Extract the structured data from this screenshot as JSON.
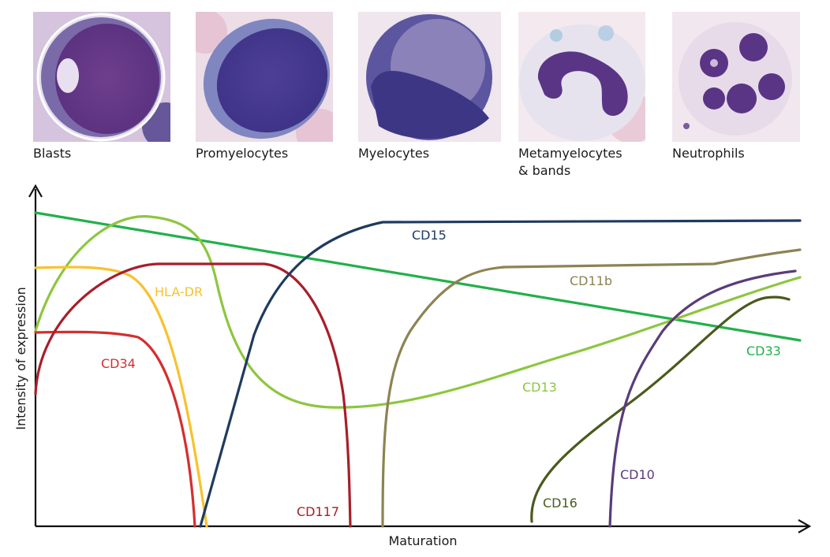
{
  "stages": [
    {
      "id": "blasts",
      "label": "Blasts",
      "label_line2": ""
    },
    {
      "id": "promyelocytes",
      "label": "Promyelocytes",
      "label_line2": ""
    },
    {
      "id": "myelocytes",
      "label": "Myelocytes",
      "label_line2": ""
    },
    {
      "id": "metamyelocytes",
      "label": "Metamyelocytes",
      "label_line2": "& bands"
    },
    {
      "id": "neutrophils",
      "label": "Neutrophils",
      "label_line2": ""
    }
  ],
  "axes": {
    "x_label": "Maturation",
    "y_label": "Intensity of expression"
  },
  "markers": [
    {
      "id": "cd33",
      "label": "CD33",
      "color": "#22b04b"
    },
    {
      "id": "cd13",
      "label": "CD13",
      "color": "#8dc63f"
    },
    {
      "id": "hladr",
      "label": "HLA-DR",
      "color": "#f7c22e"
    },
    {
      "id": "cd34",
      "label": "CD34",
      "color": "#d32f2f"
    },
    {
      "id": "cd117",
      "label": "CD117",
      "color": "#a81e2a"
    },
    {
      "id": "cd15",
      "label": "CD15",
      "color": "#1e3a5f"
    },
    {
      "id": "cd11b",
      "label": "CD11b",
      "color": "#8c8452"
    },
    {
      "id": "cd16",
      "label": "CD16",
      "color": "#4a5a1e"
    },
    {
      "id": "cd10",
      "label": "CD10",
      "color": "#5b3b7a"
    }
  ],
  "colors": {
    "cell_background_purple": "#d9c6e0",
    "nucleus_purple": "#5a3585",
    "cytoplasm_light": "#e9e1ee"
  }
}
